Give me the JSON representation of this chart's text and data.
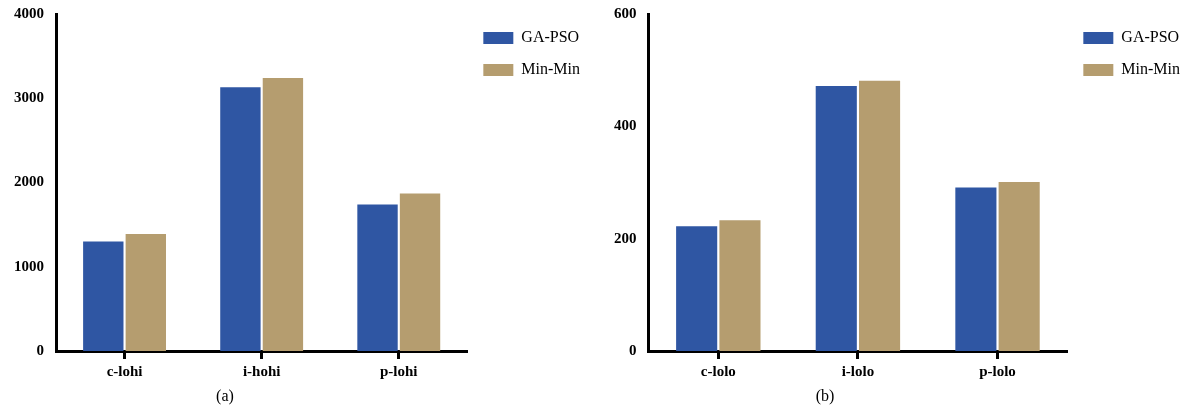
{
  "chart_data": [
    {
      "type": "bar",
      "categories": [
        "c-lohi",
        "i-hohi",
        "p-lohi"
      ],
      "series": [
        {
          "name": "GA-PSO",
          "color": "#2f56a3",
          "values": [
            1300,
            3130,
            1740
          ]
        },
        {
          "name": "Min-Min",
          "color": "#b59d6f",
          "values": [
            1390,
            3240,
            1870
          ]
        }
      ],
      "ylim": [
        0,
        4000
      ],
      "yticks": [
        0,
        1000,
        2000,
        3000,
        4000
      ],
      "grid": false,
      "legend": "top right",
      "annotations": [
        "(a)"
      ]
    },
    {
      "type": "bar",
      "categories": [
        "c-lolo",
        "i-lolo",
        "p-lolo"
      ],
      "series": [
        {
          "name": "GA-PSO",
          "color": "#2f56a3",
          "values": [
            222,
            472,
            291
          ]
        },
        {
          "name": "Min-Min",
          "color": "#b59d6f",
          "values": [
            233,
            481,
            301
          ]
        }
      ],
      "ylim": [
        0,
        600
      ],
      "yticks": [
        0,
        200,
        400,
        600
      ],
      "grid": false,
      "legend": "top right",
      "annotations": [
        "(b)"
      ]
    }
  ]
}
